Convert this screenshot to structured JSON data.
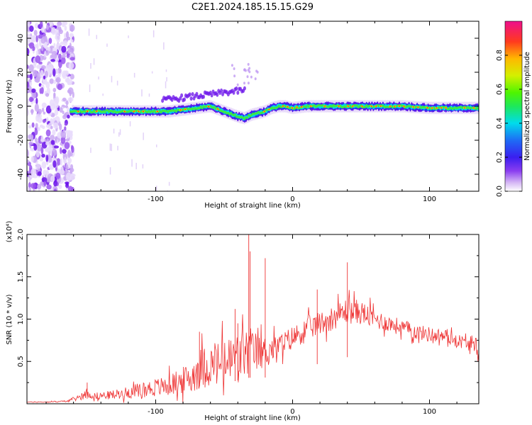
{
  "title": "C2E1.2024.185.15.15.G29",
  "chart_data": [
    {
      "type": "heatmap",
      "xlabel": "Height of straight line (km)",
      "ylabel": "Frequency (Hz)",
      "xlim": [
        -194,
        136
      ],
      "ylim": [
        -50,
        50
      ],
      "x_ticks": [
        -100,
        0,
        100
      ],
      "x_tick_labels": [
        "-100",
        "0",
        "100"
      ],
      "y_ticks": [
        -40,
        -20,
        0,
        20,
        40
      ],
      "y_tick_labels": [
        "-40",
        "-20",
        "0",
        "20",
        "40"
      ],
      "colorbar": {
        "label": "Normalized spectral amplitude",
        "range": [
          0,
          1
        ],
        "ticks": [
          0.0,
          0.2,
          0.4,
          0.6,
          0.8
        ],
        "tick_labels": [
          "0.0",
          "0.2",
          "0.4",
          "0.6",
          "0.8"
        ]
      },
      "ridge": {
        "x": [
          -160,
          -150,
          -140,
          -130,
          -120,
          -110,
          -100,
          -90,
          -80,
          -70,
          -60,
          -50,
          -40,
          -35,
          -30,
          -25,
          -20,
          -15,
          -10,
          -5,
          0,
          10,
          20,
          40,
          60,
          80,
          100,
          120,
          136
        ],
        "freq": [
          -3,
          -3,
          -3,
          -3,
          -3,
          -3,
          -3,
          -3,
          -2,
          -1,
          0,
          -3,
          -6,
          -7,
          -5,
          -4,
          -3,
          -1,
          0,
          0,
          -1,
          0,
          0,
          0,
          0,
          0,
          -1,
          -1,
          -1
        ]
      },
      "noise_region": {
        "x_start": -194,
        "x_end": -160
      }
    },
    {
      "type": "line",
      "xlabel": "Height of straight line (km)",
      "ylabel": "SNR (10 * v/v)",
      "y_multiplier": "(x10⁴)",
      "xlim": [
        -194,
        136
      ],
      "ylim": [
        0,
        2.0
      ],
      "x_ticks": [
        -100,
        0,
        100
      ],
      "x_tick_labels": [
        "-100",
        "0",
        "100"
      ],
      "y_ticks": [
        0.5,
        1.0,
        1.5,
        2.0
      ],
      "y_tick_labels": [
        "0.5",
        "1.0",
        "1.5",
        "2.0"
      ],
      "series": [
        {
          "color": "#ee3333",
          "x": [
            -194,
            -180,
            -165,
            -155,
            -150,
            -145,
            -135,
            -125,
            -115,
            -105,
            -95,
            -85,
            -75,
            -68,
            -60,
            -50,
            -40,
            -35,
            -30,
            -25,
            -20,
            -10,
            0,
            10,
            20,
            30,
            40,
            50,
            60,
            70,
            80,
            90,
            100,
            110,
            120,
            130,
            136
          ],
          "mean": [
            0.02,
            0.02,
            0.03,
            0.08,
            0.12,
            0.09,
            0.1,
            0.12,
            0.15,
            0.18,
            0.2,
            0.25,
            0.3,
            0.42,
            0.45,
            0.48,
            0.55,
            0.6,
            0.62,
            0.6,
            0.62,
            0.68,
            0.78,
            0.88,
            0.95,
            1.02,
            1.1,
            1.08,
            1.0,
            0.95,
            0.9,
            0.85,
            0.82,
            0.8,
            0.75,
            0.7,
            0.62
          ],
          "spread": [
            0.005,
            0.005,
            0.01,
            0.04,
            0.05,
            0.04,
            0.05,
            0.06,
            0.08,
            0.1,
            0.12,
            0.14,
            0.18,
            0.25,
            0.25,
            0.3,
            0.3,
            0.32,
            0.28,
            0.22,
            0.18,
            0.14,
            0.14,
            0.14,
            0.14,
            0.14,
            0.16,
            0.14,
            0.12,
            0.1,
            0.1,
            0.09,
            0.09,
            0.08,
            0.08,
            0.08,
            0.07
          ],
          "spikes": [
            {
              "x": -150,
              "y": 0.25
            },
            {
              "x": -68,
              "y": 0.85
            },
            {
              "x": -42,
              "y": 1.12
            },
            {
              "x": -40,
              "y": 0.95
            },
            {
              "x": -32,
              "y": 2.02
            },
            {
              "x": -31,
              "y": 1.8
            },
            {
              "x": -20,
              "y": 1.72
            },
            {
              "x": 40,
              "y": 1.67
            },
            {
              "x": 18,
              "y": 1.35
            }
          ]
        }
      ]
    }
  ]
}
